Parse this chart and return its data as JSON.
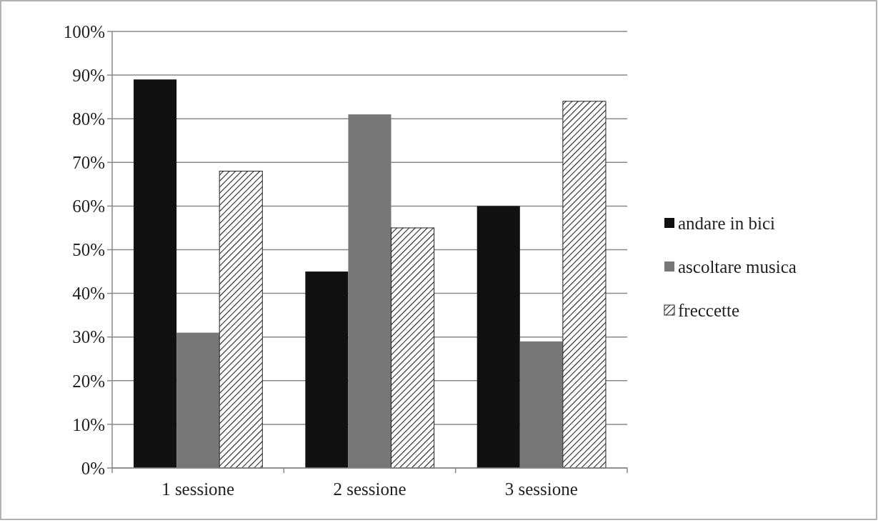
{
  "chart_data": {
    "type": "bar",
    "categories": [
      "1 sessione",
      "2 sessione",
      "3 sessione"
    ],
    "series": [
      {
        "name": "andare in bici",
        "color": "#111111",
        "values": [
          89,
          45,
          60
        ]
      },
      {
        "name": "ascoltare musica",
        "color": "#777777",
        "values": [
          31,
          81,
          29
        ]
      },
      {
        "name": "freccette",
        "color": "#222222",
        "values": [
          68,
          55,
          84
        ]
      }
    ],
    "ylim": [
      0,
      100
    ],
    "yticks": [
      {
        "value": 0,
        "label": "0%"
      },
      {
        "value": 10,
        "label": "10%"
      },
      {
        "value": 20,
        "label": "20%"
      },
      {
        "value": 30,
        "label": "30%"
      },
      {
        "value": 40,
        "label": "40%"
      },
      {
        "value": 50,
        "label": "50%"
      },
      {
        "value": 60,
        "label": "60%"
      },
      {
        "value": 70,
        "label": "70%"
      },
      {
        "value": 80,
        "label": "80%"
      },
      {
        "value": 90,
        "label": "90%"
      },
      {
        "value": 100,
        "label": "100%"
      }
    ],
    "grid": "y",
    "legend": "right"
  }
}
